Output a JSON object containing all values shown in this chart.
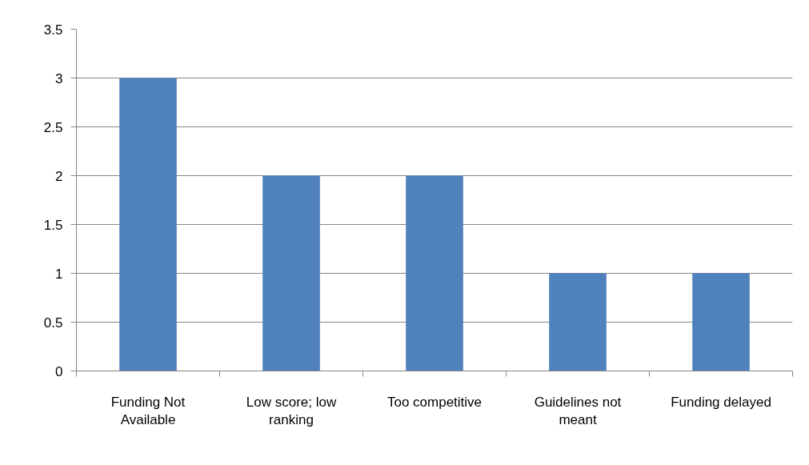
{
  "chart_data": {
    "type": "bar",
    "categories": [
      "Funding Not Available",
      "Low score; low ranking",
      "Too competitive",
      "Guidelines not meant",
      "Funding delayed"
    ],
    "values": [
      3,
      2,
      2,
      1,
      1
    ],
    "color": "#4f81bd",
    "ylim": [
      0,
      3.5
    ],
    "yticks": [
      0,
      0.5,
      1,
      1.5,
      2,
      2.5,
      3,
      3.5
    ],
    "grid": "y"
  }
}
